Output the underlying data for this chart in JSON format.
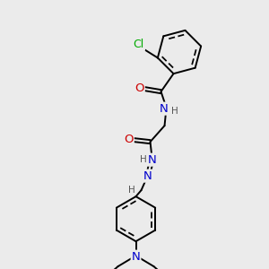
{
  "background_color": "#e8e8e8",
  "atom_colors": {
    "C": "#000000",
    "N": "#0000cc",
    "O": "#cc0000",
    "Cl": "#00aa00",
    "H": "#555555"
  },
  "bond_color": "#000000",
  "bond_lw": 1.4,
  "font_size": 8.5,
  "fig_size": [
    3.0,
    3.0
  ],
  "dpi": 100,
  "bg": "#ebebeb"
}
